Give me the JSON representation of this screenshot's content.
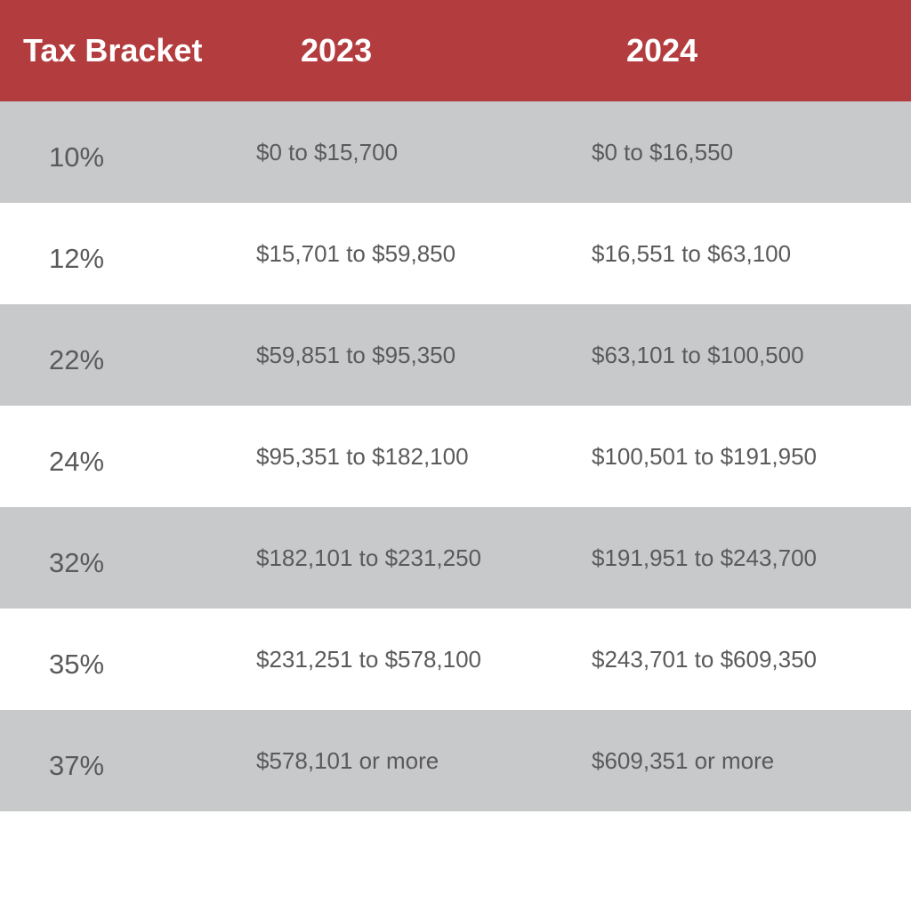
{
  "table": {
    "header": [
      "Tax Bracket",
      "2023",
      "2024"
    ],
    "rows": [
      [
        "10%",
        "$0 to $15,700",
        "$0 to $16,550"
      ],
      [
        "12%",
        "$15,701 to $59,850",
        "$16,551 to $63,100"
      ],
      [
        "22%",
        "$59,851 to $95,350",
        "$63,101 to $100,500"
      ],
      [
        "24%",
        "$95,351 to $182,100",
        "$100,501 to $191,950"
      ],
      [
        "32%",
        "$182,101 to $231,250",
        "$191,951 to $243,700"
      ],
      [
        "35%",
        "$231,251 to $578,100",
        "$243,701 to $609,350"
      ],
      [
        "37%",
        "$578,101 or more",
        "$609,351 or more"
      ]
    ]
  }
}
